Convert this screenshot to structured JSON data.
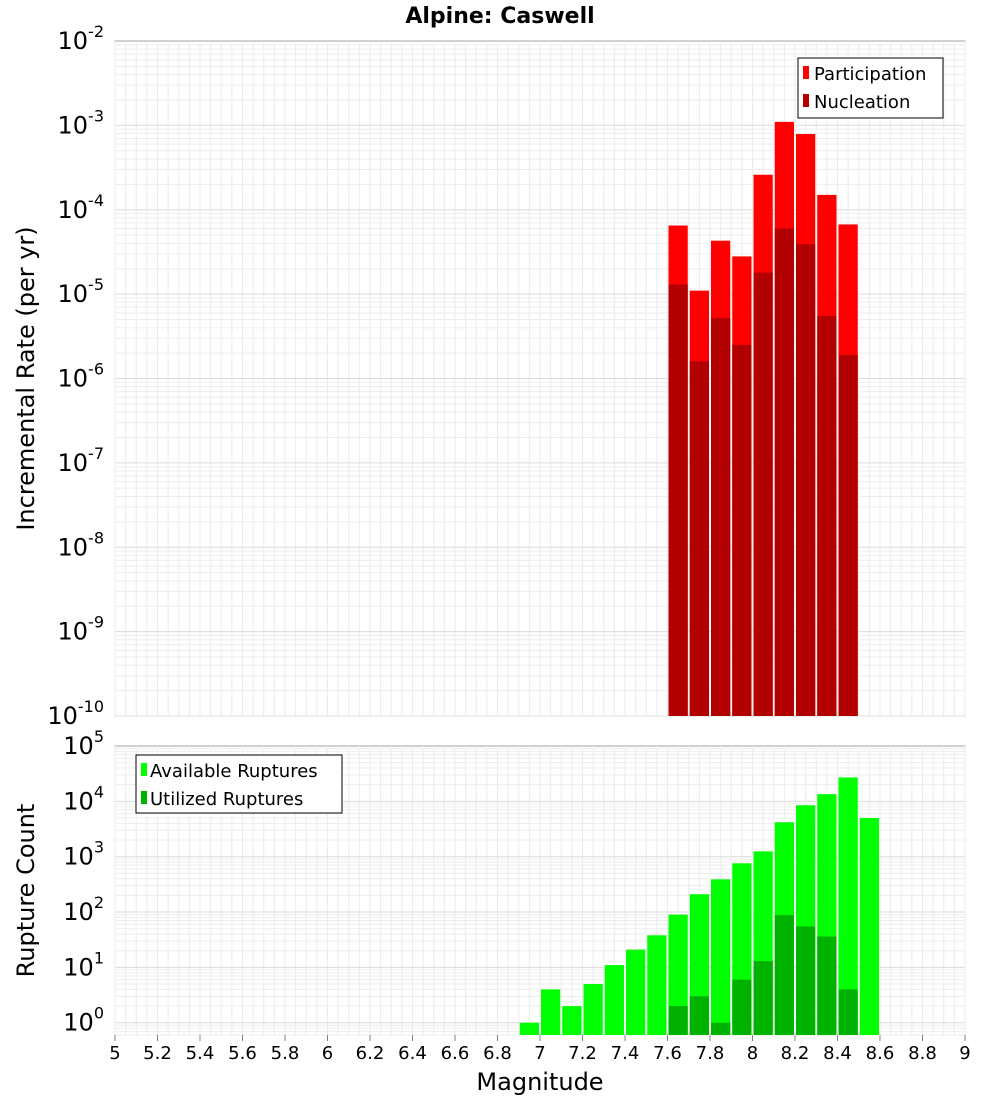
{
  "title": "Alpine: Caswell",
  "chart_data": [
    {
      "type": "bar",
      "yscale": "log",
      "ylabel": "Incremental Rate (per yr)",
      "xlim": [
        5,
        9
      ],
      "ylim": [
        1e-10,
        0.01
      ],
      "bin_width": 0.1,
      "legend_position": "top-right",
      "yticks": [
        {
          "base": "10",
          "exp": "-10"
        },
        {
          "base": "10",
          "exp": "-9"
        },
        {
          "base": "10",
          "exp": "-8"
        },
        {
          "base": "10",
          "exp": "-7"
        },
        {
          "base": "10",
          "exp": "-6"
        },
        {
          "base": "10",
          "exp": "-5"
        },
        {
          "base": "10",
          "exp": "-4"
        },
        {
          "base": "10",
          "exp": "-3"
        },
        {
          "base": "10",
          "exp": "-2"
        }
      ],
      "series": [
        {
          "name": "Participation",
          "color": "#ff0000",
          "x": [
            7.65,
            7.75,
            7.85,
            7.95,
            8.05,
            8.15,
            8.25,
            8.35,
            8.45
          ],
          "values": [
            6.5e-05,
            1.1e-05,
            4.3e-05,
            2.8e-05,
            0.00026,
            0.0011,
            0.00079,
            0.00015,
            6.7e-05
          ]
        },
        {
          "name": "Nucleation",
          "color": "#b20000",
          "x": [
            7.65,
            7.75,
            7.85,
            7.95,
            8.05,
            8.15,
            8.25,
            8.35,
            8.45
          ],
          "values": [
            1.3e-05,
            1.6e-06,
            5.2e-06,
            2.5e-06,
            1.8e-05,
            6e-05,
            3.9e-05,
            5.5e-06,
            1.9e-06
          ]
        }
      ]
    },
    {
      "type": "bar",
      "yscale": "log",
      "xlabel": "Magnitude",
      "ylabel": "Rupture Count",
      "xlim": [
        5,
        9
      ],
      "ylim": [
        0.6,
        100000.0
      ],
      "bin_width": 0.1,
      "legend_position": "top-left",
      "xticks": [
        "5",
        "5.2",
        "5.4",
        "5.6",
        "5.8",
        "6",
        "6.2",
        "6.4",
        "6.6",
        "6.8",
        "7",
        "7.2",
        "7.4",
        "7.6",
        "7.8",
        "8",
        "8.2",
        "8.4",
        "8.6",
        "8.8",
        "9"
      ],
      "yticks": [
        {
          "base": "10",
          "exp": "0"
        },
        {
          "base": "10",
          "exp": "1"
        },
        {
          "base": "10",
          "exp": "2"
        },
        {
          "base": "10",
          "exp": "3"
        },
        {
          "base": "10",
          "exp": "4"
        },
        {
          "base": "10",
          "exp": "5"
        }
      ],
      "series": [
        {
          "name": "Available Ruptures",
          "color": "#00ff00",
          "x": [
            6.95,
            7.05,
            7.15,
            7.25,
            7.35,
            7.45,
            7.55,
            7.65,
            7.75,
            7.85,
            7.95,
            8.05,
            8.15,
            8.25,
            8.35,
            8.45,
            8.55
          ],
          "values": [
            1,
            4,
            2,
            5,
            11,
            21,
            38,
            90,
            210,
            390,
            760,
            1250,
            4200,
            8500,
            13500,
            27000,
            5000
          ]
        },
        {
          "name": "Utilized Ruptures",
          "color": "#00b200",
          "x": [
            7.65,
            7.75,
            7.85,
            7.95,
            8.05,
            8.15,
            8.25,
            8.35,
            8.45
          ],
          "values": [
            2,
            3,
            1,
            6,
            13,
            88,
            55,
            36,
            4
          ]
        }
      ]
    }
  ]
}
